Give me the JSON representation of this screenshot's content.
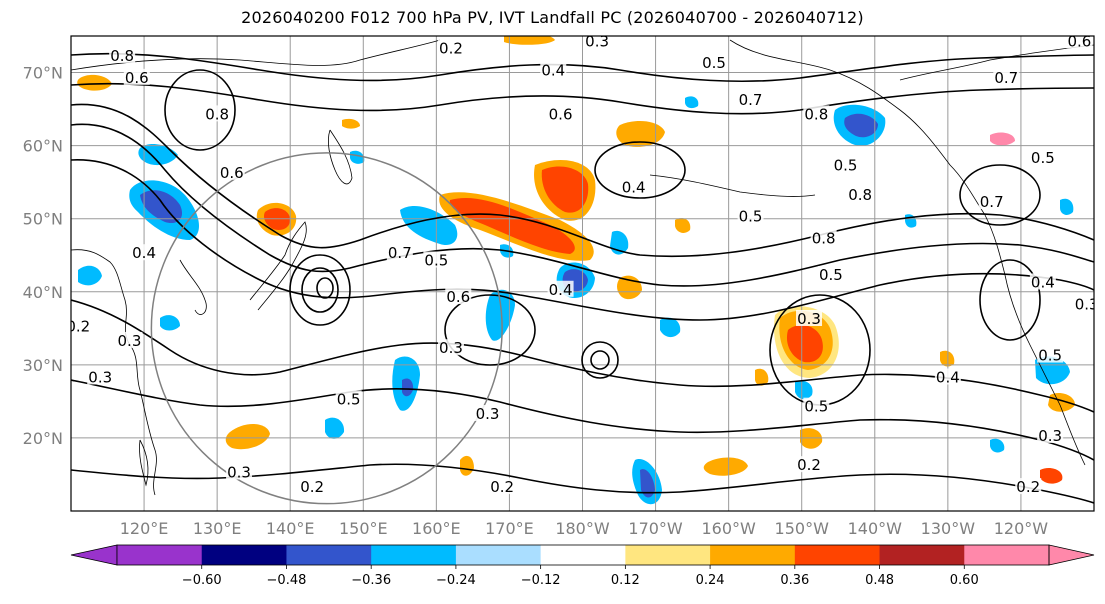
{
  "title": "2026040200 F012 700 hPa PV, IVT Landfall PC (2026040700 - 2026040712)",
  "map": {
    "projection": "PlateCarree",
    "lon_range": [
      110,
      250
    ],
    "lat_range": [
      10,
      75
    ],
    "lat_ticks": [
      {
        "value": 70,
        "label": "70°N"
      },
      {
        "value": 60,
        "label": "60°N"
      },
      {
        "value": 50,
        "label": "50°N"
      },
      {
        "value": 40,
        "label": "40°N"
      },
      {
        "value": 30,
        "label": "30°N"
      },
      {
        "value": 20,
        "label": "20°N"
      }
    ],
    "lon_ticks": [
      {
        "value": 120,
        "label": "120°E"
      },
      {
        "value": 130,
        "label": "130°E"
      },
      {
        "value": 140,
        "label": "140°E"
      },
      {
        "value": 150,
        "label": "150°E"
      },
      {
        "value": 160,
        "label": "160°E"
      },
      {
        "value": 170,
        "label": "170°E"
      },
      {
        "value": 180,
        "label": "180°W"
      },
      {
        "value": 190,
        "label": "170°W"
      },
      {
        "value": 200,
        "label": "160°W"
      },
      {
        "value": 210,
        "label": "150°W"
      },
      {
        "value": 220,
        "label": "140°W"
      },
      {
        "value": 230,
        "label": "130°W"
      },
      {
        "value": 240,
        "label": "120°W"
      }
    ],
    "gridlines": true,
    "range_circle": {
      "center": [
        145,
        35
      ],
      "radius_deg": 24
    }
  },
  "contour_labels": [
    {
      "text": "0.8",
      "lon": 117,
      "lat": 72
    },
    {
      "text": "0.6",
      "lon": 119,
      "lat": 69
    },
    {
      "text": "0.2",
      "lon": 162,
      "lat": 73
    },
    {
      "text": "0.3",
      "lon": 182,
      "lat": 74
    },
    {
      "text": "0.4",
      "lon": 176,
      "lat": 70
    },
    {
      "text": "0.5",
      "lon": 198,
      "lat": 71
    },
    {
      "text": "0.6",
      "lon": 177,
      "lat": 64
    },
    {
      "text": "0.7",
      "lon": 203,
      "lat": 66
    },
    {
      "text": "0.8",
      "lon": 212,
      "lat": 64
    },
    {
      "text": "0.7",
      "lon": 238,
      "lat": 69
    },
    {
      "text": "0.8",
      "lon": 130,
      "lat": 64
    },
    {
      "text": "0.5",
      "lon": 203,
      "lat": 50
    },
    {
      "text": "0.4",
      "lon": 187,
      "lat": 54
    },
    {
      "text": "0.5",
      "lon": 216,
      "lat": 57
    },
    {
      "text": "0.8",
      "lon": 218,
      "lat": 53
    },
    {
      "text": "0.7",
      "lon": 236,
      "lat": 52
    },
    {
      "text": "0.8",
      "lon": 213,
      "lat": 47
    },
    {
      "text": "0.5",
      "lon": 214,
      "lat": 42
    },
    {
      "text": "0.3",
      "lon": 211,
      "lat": 36
    },
    {
      "text": "0.7",
      "lon": 155,
      "lat": 45
    },
    {
      "text": "0.5",
      "lon": 160,
      "lat": 44
    },
    {
      "text": "0.6",
      "lon": 163,
      "lat": 39
    },
    {
      "text": "0.4",
      "lon": 177,
      "lat": 40
    },
    {
      "text": "0.3",
      "lon": 162,
      "lat": 32
    },
    {
      "text": "0.5",
      "lon": 148,
      "lat": 25
    },
    {
      "text": "0.3",
      "lon": 167,
      "lat": 23
    },
    {
      "text": "0.2",
      "lon": 143,
      "lat": 13
    },
    {
      "text": "0.3",
      "lon": 133,
      "lat": 15
    },
    {
      "text": "0.2",
      "lon": 169,
      "lat": 13
    },
    {
      "text": "0.4",
      "lon": 230,
      "lat": 28
    },
    {
      "text": "0.5",
      "lon": 212,
      "lat": 24
    },
    {
      "text": "0.2",
      "lon": 211,
      "lat": 16
    },
    {
      "text": "0.2",
      "lon": 241,
      "lat": 13
    },
    {
      "text": "0.3",
      "lon": 244,
      "lat": 20
    },
    {
      "text": "0.4",
      "lon": 243,
      "lat": 41
    },
    {
      "text": "0.5",
      "lon": 244,
      "lat": 31
    },
    {
      "text": "0.3",
      "lon": 249,
      "lat": 38
    },
    {
      "text": "0.2",
      "lon": 111,
      "lat": 35
    },
    {
      "text": "0.3",
      "lon": 118,
      "lat": 33
    },
    {
      "text": "0.3",
      "lon": 114,
      "lat": 28
    },
    {
      "text": "0.4",
      "lon": 120,
      "lat": 45
    },
    {
      "text": "0.6",
      "lon": 132,
      "lat": 56
    },
    {
      "text": "0.5",
      "lon": 243,
      "lat": 58
    },
    {
      "text": "0.6",
      "lon": 248,
      "lat": 74
    }
  ],
  "colorbar": {
    "colors": [
      "#9933cc",
      "#000080",
      "#3355cc",
      "#00bbff",
      "#aadeff",
      "#ffffff",
      "#ffe680",
      "#ffaa00",
      "#ff4400",
      "#b22222",
      "#ff88aa"
    ],
    "labels": [
      "−0.60",
      "−0.48",
      "−0.36",
      "−0.24",
      "−0.12",
      "0.12",
      "0.24",
      "0.36",
      "0.48",
      "0.60"
    ]
  }
}
